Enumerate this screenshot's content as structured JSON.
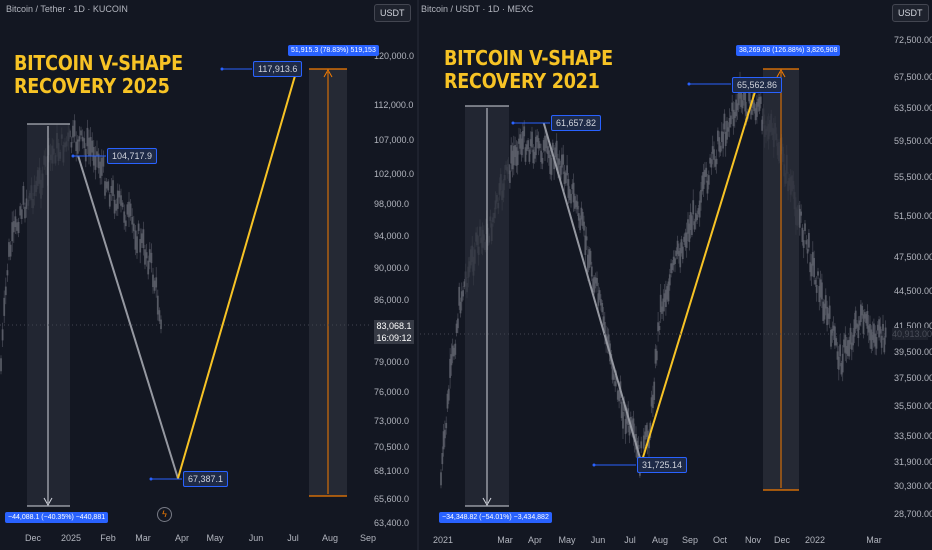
{
  "panels": [
    {
      "title": "Bitcoin / Tether · 1D · KUCOIN",
      "currency": "USDT",
      "headline": [
        "BITCOIN V-SHAPE",
        "RECOVERY 2025"
      ],
      "callouts": [
        "104,717.9",
        "67,387.1",
        "117,913.6"
      ],
      "measure_drop": "−44,088.1 (−40.35%) −440,881",
      "measure_rise": "51,915.3 (78.83%) 519,153",
      "last_price": "83,068.1",
      "countdown": "16:09:12",
      "icon": "lightning-icon"
    },
    {
      "title": "Bitcoin / USDT · 1D · MEXC",
      "currency": "USDT",
      "headline": [
        "BITCOIN V-SHAPE",
        "RECOVERY 2021"
      ],
      "callouts": [
        "61,657.82",
        "31,725.14",
        "65,562.86"
      ],
      "measure_drop": "−34,348.82 (−54.01%) −3,434,882",
      "measure_rise": "38,269.08 (126.88%) 3,826,908",
      "last_price": "40,913.00"
    }
  ],
  "colors": {
    "background": "#131722",
    "accent": "#f7c325",
    "candles": "#5d606b",
    "callout": "#2962ff",
    "orange": "#f57c00"
  },
  "chart_data": [
    {
      "type": "candlestick",
      "title": "Bitcoin / Tether · 1D · KUCOIN",
      "x_ticks": [
        "Dec",
        "2025",
        "Feb",
        "Mar",
        "Apr",
        "May",
        "Jun",
        "Jul",
        "Aug",
        "Sep"
      ],
      "y_ticks": [
        "120,000.0",
        "112,000.0",
        "107,000.0",
        "102,000.0",
        "98,000.0",
        "94,000.0",
        "90,000.0",
        "86,000.0",
        "83,068.1",
        "79,000.0",
        "76,000.0",
        "73,000.0",
        "70,500.0",
        "68,100.0",
        "65,600.0",
        "63,400.0"
      ],
      "x_range": [
        "Nov 2024",
        "Sep 2025"
      ],
      "y_range": [
        63400,
        120000
      ],
      "y_scale": "log",
      "trend_lines": [
        {
          "from": {
            "date": "2025-01-20",
            "price": 104717.9
          },
          "to": {
            "date": "2025-04-08",
            "price": 67387.1
          },
          "color": "#9598a1"
        },
        {
          "from": {
            "date": "2025-04-08",
            "price": 67387.1
          },
          "to": {
            "date": "2025-07-10",
            "price": 117913.6
          },
          "color": "#f7c325"
        }
      ],
      "measures": [
        {
          "change": -44088.1,
          "percent": -40.35,
          "ticks": -440881
        },
        {
          "change": 51915.3,
          "percent": 78.83,
          "ticks": 519153
        }
      ]
    },
    {
      "type": "candlestick",
      "title": "Bitcoin / USDT · 1D · MEXC",
      "x_ticks": [
        "2021",
        "Mar",
        "Apr",
        "May",
        "Jun",
        "Jul",
        "Aug",
        "Sep",
        "Oct",
        "Nov",
        "Dec",
        "2022",
        "Mar"
      ],
      "y_ticks": [
        "72,500.00",
        "67,500.00",
        "63,500.00",
        "59,500.00",
        "55,500.00",
        "51,500.00",
        "47,500.00",
        "44,500.00",
        "41,500.00",
        "39,500.00",
        "37,500.00",
        "35,500.00",
        "33,500.00",
        "31,900.00",
        "30,300.00",
        "28,700.00"
      ],
      "x_range": [
        "Jan 2021",
        "Mar 2022"
      ],
      "y_range": [
        28700,
        72500
      ],
      "y_scale": "log",
      "trend_lines": [
        {
          "from": {
            "date": "2021-04-14",
            "price": 61657.82
          },
          "to": {
            "date": "2021-07-20",
            "price": 31725.14
          },
          "color": "#9598a1"
        },
        {
          "from": {
            "date": "2021-07-20",
            "price": 31725.14
          },
          "to": {
            "date": "2021-11-10",
            "price": 65562.86
          },
          "color": "#f7c325"
        }
      ],
      "measures": [
        {
          "change": -34348.82,
          "percent": -54.01,
          "ticks": -3434882
        },
        {
          "change": 38269.08,
          "percent": 126.88,
          "ticks": 3826908
        }
      ]
    }
  ]
}
